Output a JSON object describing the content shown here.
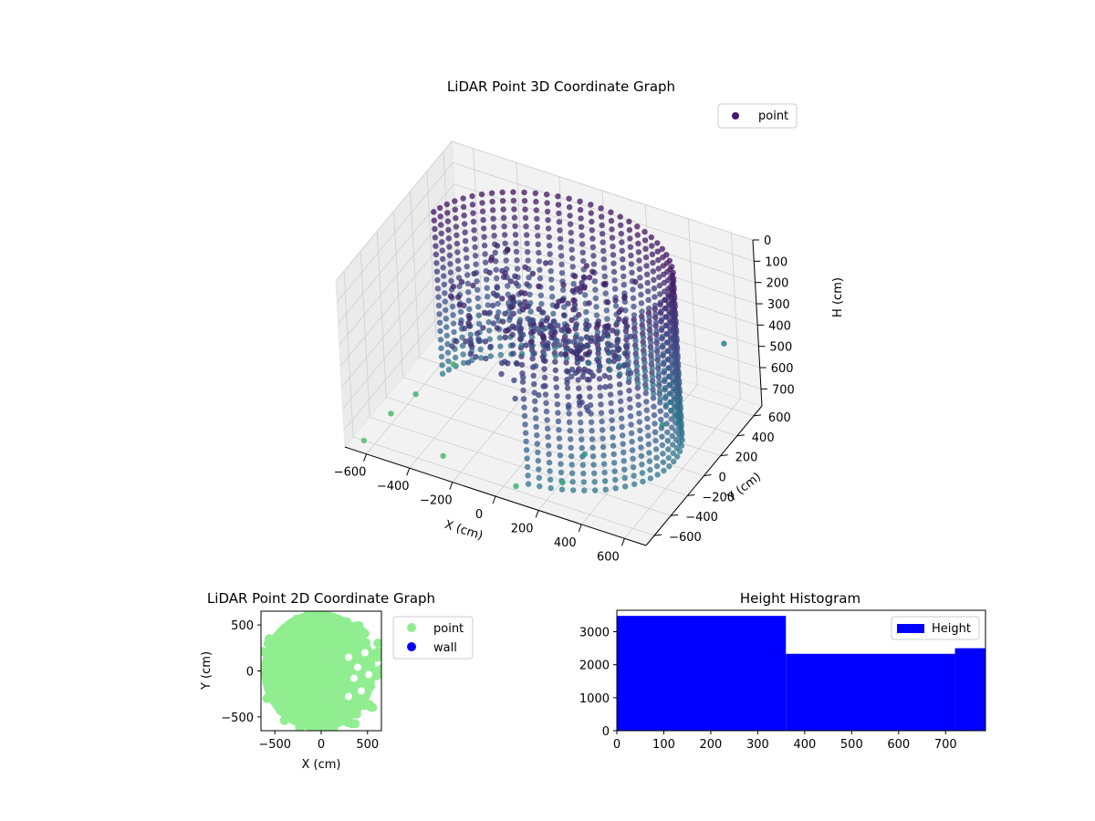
{
  "chart_data": [
    {
      "type": "scatter",
      "title": "LiDAR Point 3D Coordinate Graph",
      "xlabel": "X (cm)",
      "ylabel": "Y (cm)",
      "zlabel": "H (cm)",
      "xlim": [
        -700,
        700
      ],
      "ylim": [
        -700,
        700
      ],
      "zlim": [
        780,
        0
      ],
      "x_ticks": [
        -600,
        -400,
        -200,
        0,
        200,
        400,
        600
      ],
      "y_ticks": [
        -600,
        -400,
        -200,
        0,
        200,
        400,
        600
      ],
      "z_ticks": [
        0,
        100,
        200,
        300,
        400,
        500,
        600,
        700
      ],
      "z_inverted": true,
      "colormap": "viridis",
      "legend": {
        "position": "top-right",
        "entries": [
          "point"
        ]
      },
      "marker_color": "#46186a",
      "point_groups": [
        {
          "shape": "outer-wall-arc",
          "x_range": [
            -600,
            650
          ],
          "y_range": [
            -650,
            650
          ],
          "h_range": [
            0,
            780
          ]
        },
        {
          "shape": "inner-dense-cluster",
          "x_range": [
            -350,
            350
          ],
          "y_range": [
            -400,
            300
          ],
          "h_range": [
            100,
            500
          ]
        }
      ],
      "scattered_points": [
        {
          "x": -620,
          "y": -350,
          "h": 760
        },
        {
          "x": -560,
          "y": -200,
          "h": 720
        },
        {
          "x": -500,
          "y": 100,
          "h": 700
        },
        {
          "x": -650,
          "y": -600,
          "h": 780
        },
        {
          "x": 350,
          "y": -500,
          "h": 560
        },
        {
          "x": 600,
          "y": -200,
          "h": 480
        },
        {
          "x": 620,
          "y": 500,
          "h": 420
        },
        {
          "x": 100,
          "y": -700,
          "h": 700
        },
        {
          "x": 300,
          "y": -650,
          "h": 640
        },
        {
          "x": -300,
          "y": -550,
          "h": 760
        }
      ]
    },
    {
      "type": "scatter",
      "title": "LiDAR Point 2D Coordinate Graph",
      "xlabel": "X (cm)",
      "ylabel": "Y (cm)",
      "xlim": [
        -650,
        650
      ],
      "ylim": [
        -650,
        650
      ],
      "x_ticks": [
        -500,
        0,
        500
      ],
      "y_ticks": [
        -500,
        0,
        500
      ],
      "legend": {
        "position": "outside-right",
        "entries": [
          "point",
          "wall"
        ]
      },
      "colors": {
        "point": "#90ee90",
        "wall": "#0000ff"
      },
      "series": [
        {
          "name": "point",
          "shape": "disk",
          "center": [
            0,
            0
          ],
          "radius": 650,
          "gaps_on": "right"
        },
        {
          "name": "wall",
          "values": []
        }
      ]
    },
    {
      "type": "bar",
      "title": "Height Histogram",
      "xlabel": "",
      "ylabel": "",
      "xlim": [
        0,
        785
      ],
      "ylim": [
        0,
        3650
      ],
      "x_ticks": [
        0,
        100,
        200,
        300,
        400,
        500,
        600,
        700
      ],
      "y_ticks": [
        0,
        1000,
        2000,
        3000
      ],
      "legend": {
        "position": "top-right",
        "entries": [
          "Height"
        ]
      },
      "color": "#0000ff",
      "bins": [
        {
          "from": 0,
          "to": 360,
          "count": 3480
        },
        {
          "from": 360,
          "to": 720,
          "count": 2330
        },
        {
          "from": 720,
          "to": 785,
          "count": 2500
        }
      ]
    }
  ]
}
